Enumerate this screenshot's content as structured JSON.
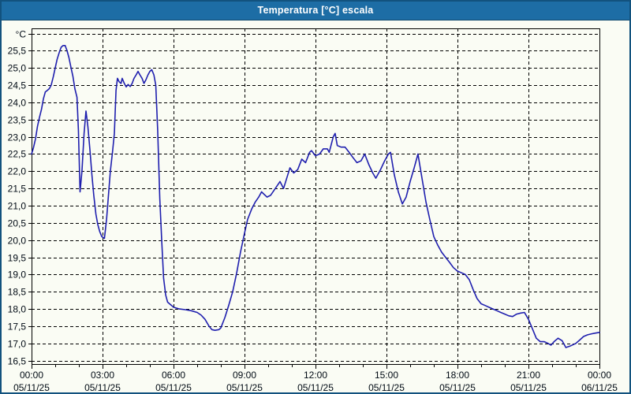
{
  "window": {
    "title": "Temperatura [°C] escala",
    "title_bar_color": "#1d6da5",
    "frame_color": "#12527e",
    "background_color": "#fafcf4"
  },
  "chart_data": {
    "type": "line",
    "title": "Temperatura [°C] escala",
    "unit_label": "°C",
    "line_color": "#1f1fae",
    "grid_color": "#000000",
    "grid_style": "dashed",
    "legend_position": "none",
    "ylim": [
      16.4,
      26.15
    ],
    "xlim_hours": [
      0,
      24
    ],
    "x_minor_step_hours": 1,
    "y_ticks": [
      {
        "value": 26.0,
        "label": "°C"
      },
      {
        "value": 25.5,
        "label": "25,5"
      },
      {
        "value": 25.0,
        "label": "25,0"
      },
      {
        "value": 24.5,
        "label": "24,5"
      },
      {
        "value": 24.0,
        "label": "24,0"
      },
      {
        "value": 23.5,
        "label": "23,5"
      },
      {
        "value": 23.0,
        "label": "23,0"
      },
      {
        "value": 22.5,
        "label": "22,5"
      },
      {
        "value": 22.0,
        "label": "22,0"
      },
      {
        "value": 21.5,
        "label": "21,5"
      },
      {
        "value": 21.0,
        "label": "21,0"
      },
      {
        "value": 20.5,
        "label": "20,5"
      },
      {
        "value": 20.0,
        "label": "20,0"
      },
      {
        "value": 19.5,
        "label": "19,5"
      },
      {
        "value": 19.0,
        "label": "19,0"
      },
      {
        "value": 18.5,
        "label": "18,5"
      },
      {
        "value": 18.0,
        "label": "18,0"
      },
      {
        "value": 17.5,
        "label": "17,5"
      },
      {
        "value": 17.0,
        "label": "17,0"
      },
      {
        "value": 16.5,
        "label": "16,5"
      }
    ],
    "x_ticks": [
      {
        "hour": 0,
        "time": "00:00",
        "date": "05/11/25"
      },
      {
        "hour": 3,
        "time": "03:00",
        "date": "05/11/25"
      },
      {
        "hour": 6,
        "time": "06:00",
        "date": "05/11/25"
      },
      {
        "hour": 9,
        "time": "09:00",
        "date": "05/11/25"
      },
      {
        "hour": 12,
        "time": "12:00",
        "date": "05/11/25"
      },
      {
        "hour": 15,
        "time": "15:00",
        "date": "05/11/25"
      },
      {
        "hour": 18,
        "time": "18:00",
        "date": "05/11/25"
      },
      {
        "hour": 21,
        "time": "21:00",
        "date": "05/11/25"
      },
      {
        "hour": 24,
        "time": "00:00",
        "date": "06/11/25"
      }
    ],
    "series": [
      {
        "name": "Temperatura",
        "points": [
          [
            0,
            22.5
          ],
          [
            0.08,
            22.68
          ],
          [
            0.17,
            22.95
          ],
          [
            0.25,
            23.3
          ],
          [
            0.33,
            23.55
          ],
          [
            0.42,
            23.8
          ],
          [
            0.5,
            24.1
          ],
          [
            0.58,
            24.3
          ],
          [
            0.67,
            24.35
          ],
          [
            0.75,
            24.4
          ],
          [
            0.83,
            24.5
          ],
          [
            0.92,
            24.75
          ],
          [
            1,
            25.0
          ],
          [
            1.08,
            25.25
          ],
          [
            1.17,
            25.45
          ],
          [
            1.25,
            25.6
          ],
          [
            1.33,
            25.65
          ],
          [
            1.42,
            25.65
          ],
          [
            1.5,
            25.5
          ],
          [
            1.58,
            25.3
          ],
          [
            1.67,
            25.0
          ],
          [
            1.75,
            24.75
          ],
          [
            1.83,
            24.4
          ],
          [
            1.92,
            24.15
          ],
          [
            1.98,
            23.2
          ],
          [
            2.05,
            21.4
          ],
          [
            2.13,
            22.0
          ],
          [
            2.22,
            23.1
          ],
          [
            2.3,
            23.75
          ],
          [
            2.38,
            23.3
          ],
          [
            2.47,
            22.6
          ],
          [
            2.55,
            21.9
          ],
          [
            2.63,
            21.3
          ],
          [
            2.72,
            20.75
          ],
          [
            2.8,
            20.45
          ],
          [
            2.88,
            20.25
          ],
          [
            2.97,
            20.1
          ],
          [
            3.08,
            20.05
          ],
          [
            3.17,
            20.6
          ],
          [
            3.25,
            21.3
          ],
          [
            3.33,
            22.0
          ],
          [
            3.42,
            22.55
          ],
          [
            3.5,
            23.1
          ],
          [
            3.57,
            24.35
          ],
          [
            3.63,
            24.7
          ],
          [
            3.7,
            24.6
          ],
          [
            3.78,
            24.55
          ],
          [
            3.83,
            24.7
          ],
          [
            3.92,
            24.55
          ],
          [
            4,
            24.45
          ],
          [
            4.08,
            24.52
          ],
          [
            4.17,
            24.46
          ],
          [
            4.25,
            24.55
          ],
          [
            4.33,
            24.7
          ],
          [
            4.42,
            24.8
          ],
          [
            4.5,
            24.9
          ],
          [
            4.58,
            24.8
          ],
          [
            4.67,
            24.7
          ],
          [
            4.75,
            24.55
          ],
          [
            4.83,
            24.65
          ],
          [
            4.92,
            24.8
          ],
          [
            5,
            24.9
          ],
          [
            5.08,
            24.95
          ],
          [
            5.17,
            24.8
          ],
          [
            5.25,
            24.5
          ],
          [
            5.33,
            23.2
          ],
          [
            5.42,
            21.2
          ],
          [
            5.5,
            20.0
          ],
          [
            5.58,
            18.9
          ],
          [
            5.67,
            18.4
          ],
          [
            5.75,
            18.2
          ],
          [
            5.83,
            18.15
          ],
          [
            5.92,
            18.1
          ],
          [
            6,
            18.05
          ],
          [
            6.25,
            18.0
          ],
          [
            6.5,
            17.98
          ],
          [
            6.75,
            17.95
          ],
          [
            7,
            17.9
          ],
          [
            7.17,
            17.82
          ],
          [
            7.33,
            17.7
          ],
          [
            7.5,
            17.5
          ],
          [
            7.62,
            17.4
          ],
          [
            7.75,
            17.38
          ],
          [
            7.92,
            17.4
          ],
          [
            8,
            17.45
          ],
          [
            8.17,
            17.75
          ],
          [
            8.33,
            18.1
          ],
          [
            8.5,
            18.5
          ],
          [
            8.67,
            19.05
          ],
          [
            8.83,
            19.65
          ],
          [
            9,
            20.2
          ],
          [
            9.13,
            20.6
          ],
          [
            9.3,
            20.9
          ],
          [
            9.45,
            21.1
          ],
          [
            9.6,
            21.25
          ],
          [
            9.72,
            21.4
          ],
          [
            9.95,
            21.25
          ],
          [
            10.1,
            21.3
          ],
          [
            10.25,
            21.45
          ],
          [
            10.4,
            21.6
          ],
          [
            10.5,
            21.7
          ],
          [
            10.65,
            21.5
          ],
          [
            10.83,
            21.9
          ],
          [
            10.92,
            22.1
          ],
          [
            11.08,
            21.95
          ],
          [
            11.25,
            22.05
          ],
          [
            11.42,
            22.35
          ],
          [
            11.58,
            22.25
          ],
          [
            11.75,
            22.55
          ],
          [
            11.83,
            22.6
          ],
          [
            12,
            22.45
          ],
          [
            12.17,
            22.5
          ],
          [
            12.33,
            22.65
          ],
          [
            12.5,
            22.65
          ],
          [
            12.58,
            22.55
          ],
          [
            12.75,
            23.0
          ],
          [
            12.83,
            23.1
          ],
          [
            12.92,
            22.75
          ],
          [
            13.08,
            22.7
          ],
          [
            13.25,
            22.7
          ],
          [
            13.42,
            22.55
          ],
          [
            13.58,
            22.4
          ],
          [
            13.75,
            22.25
          ],
          [
            13.92,
            22.3
          ],
          [
            14.08,
            22.5
          ],
          [
            14.25,
            22.2
          ],
          [
            14.42,
            21.95
          ],
          [
            14.55,
            21.8
          ],
          [
            14.75,
            22.05
          ],
          [
            14.92,
            22.3
          ],
          [
            15.08,
            22.5
          ],
          [
            15.17,
            22.55
          ],
          [
            15.33,
            21.9
          ],
          [
            15.5,
            21.4
          ],
          [
            15.67,
            21.05
          ],
          [
            15.83,
            21.25
          ],
          [
            16,
            21.7
          ],
          [
            16.17,
            22.1
          ],
          [
            16.33,
            22.5
          ],
          [
            16.5,
            21.8
          ],
          [
            16.67,
            21.1
          ],
          [
            16.83,
            20.6
          ],
          [
            17,
            20.1
          ],
          [
            17.17,
            19.85
          ],
          [
            17.33,
            19.65
          ],
          [
            17.5,
            19.5
          ],
          [
            17.67,
            19.35
          ],
          [
            17.83,
            19.2
          ],
          [
            18,
            19.1
          ],
          [
            18.17,
            19.05
          ],
          [
            18.33,
            19.0
          ],
          [
            18.5,
            18.85
          ],
          [
            18.67,
            18.55
          ],
          [
            18.83,
            18.3
          ],
          [
            19,
            18.15
          ],
          [
            19.17,
            18.1
          ],
          [
            19.33,
            18.05
          ],
          [
            19.5,
            18.0
          ],
          [
            19.67,
            17.95
          ],
          [
            19.83,
            17.9
          ],
          [
            20,
            17.85
          ],
          [
            20.17,
            17.8
          ],
          [
            20.33,
            17.78
          ],
          [
            20.5,
            17.85
          ],
          [
            20.67,
            17.88
          ],
          [
            20.83,
            17.9
          ],
          [
            21,
            17.7
          ],
          [
            21.17,
            17.42
          ],
          [
            21.33,
            17.15
          ],
          [
            21.5,
            17.05
          ],
          [
            21.67,
            17.05
          ],
          [
            21.83,
            17.0
          ],
          [
            21.95,
            16.95
          ],
          [
            22.08,
            17.05
          ],
          [
            22.25,
            17.15
          ],
          [
            22.42,
            17.08
          ],
          [
            22.58,
            16.88
          ],
          [
            22.75,
            16.92
          ],
          [
            23,
            17.0
          ],
          [
            23.17,
            17.1
          ],
          [
            23.33,
            17.2
          ],
          [
            23.5,
            17.25
          ],
          [
            23.67,
            17.28
          ],
          [
            23.83,
            17.3
          ],
          [
            24,
            17.32
          ]
        ]
      }
    ]
  }
}
